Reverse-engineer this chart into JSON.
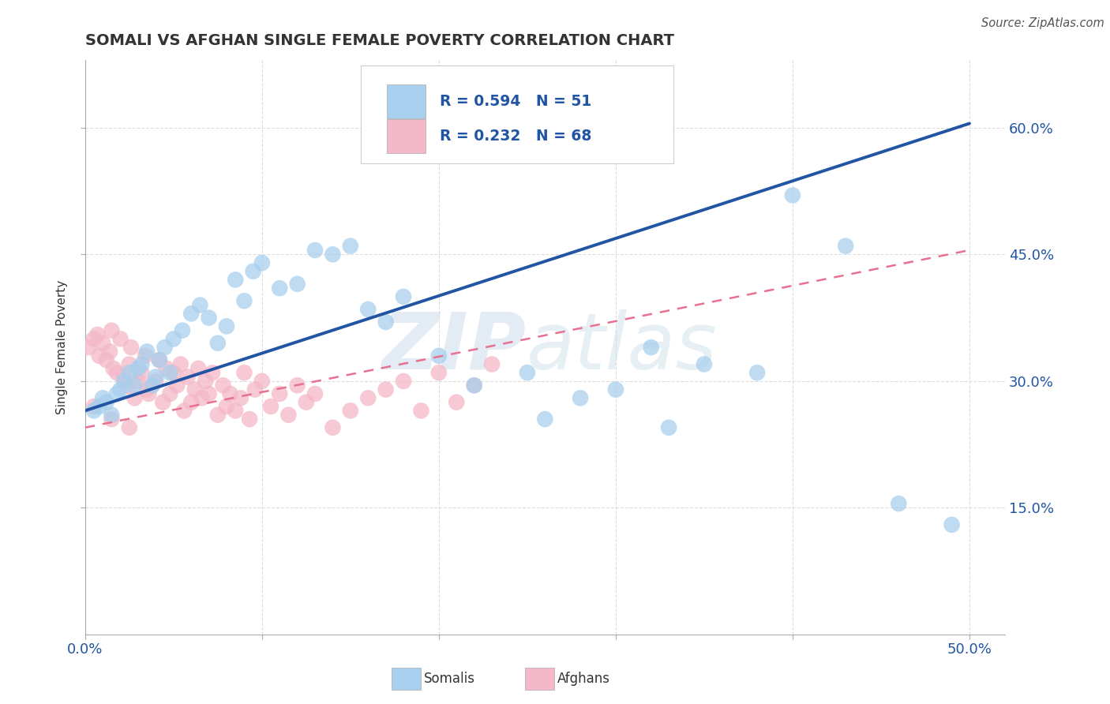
{
  "title": "SOMALI VS AFGHAN SINGLE FEMALE POVERTY CORRELATION CHART",
  "source": "Source: ZipAtlas.com",
  "ylabel": "Single Female Poverty",
  "xlim": [
    0.0,
    0.52
  ],
  "ylim": [
    0.0,
    0.68
  ],
  "ytick_positions": [
    0.15,
    0.3,
    0.45,
    0.6
  ],
  "xtick_positions": [
    0.0,
    0.1,
    0.2,
    0.3,
    0.4,
    0.5
  ],
  "right_ytick_labels": [
    "15.0%",
    "30.0%",
    "45.0%",
    "60.0%"
  ],
  "somali_color": "#A8CFED",
  "afghan_color": "#F4B8C8",
  "somali_line_color": "#2155A3",
  "afghan_line_color": "#E87090",
  "R_somali": 0.594,
  "N_somali": 51,
  "R_afghan": 0.232,
  "N_afghan": 68,
  "watermark_zip": "ZIP",
  "watermark_atlas": "atlas",
  "background_color": "#FFFFFF",
  "grid_color": "#DDDDDD",
  "tick_label_color": "#2155A3",
  "text_color": "#333333",
  "somali_line_y0": 0.265,
  "somali_line_y1": 0.605,
  "afghan_line_y0": 0.245,
  "afghan_line_y1": 0.455,
  "somali_x": [
    0.005,
    0.008,
    0.01,
    0.012,
    0.015,
    0.018,
    0.02,
    0.022,
    0.025,
    0.028,
    0.03,
    0.032,
    0.035,
    0.038,
    0.04,
    0.042,
    0.045,
    0.048,
    0.05,
    0.055,
    0.06,
    0.065,
    0.07,
    0.075,
    0.08,
    0.085,
    0.09,
    0.095,
    0.1,
    0.11,
    0.12,
    0.13,
    0.14,
    0.15,
    0.16,
    0.17,
    0.18,
    0.2,
    0.22,
    0.25,
    0.28,
    0.3,
    0.32,
    0.35,
    0.38,
    0.4,
    0.43,
    0.46,
    0.49,
    0.33,
    0.26
  ],
  "somali_y": [
    0.265,
    0.27,
    0.28,
    0.275,
    0.26,
    0.285,
    0.29,
    0.3,
    0.31,
    0.295,
    0.315,
    0.32,
    0.335,
    0.295,
    0.305,
    0.325,
    0.34,
    0.31,
    0.35,
    0.36,
    0.38,
    0.39,
    0.375,
    0.345,
    0.365,
    0.42,
    0.395,
    0.43,
    0.44,
    0.41,
    0.415,
    0.455,
    0.45,
    0.46,
    0.385,
    0.37,
    0.4,
    0.33,
    0.295,
    0.31,
    0.28,
    0.29,
    0.34,
    0.32,
    0.31,
    0.52,
    0.46,
    0.155,
    0.13,
    0.245,
    0.255
  ],
  "afghan_x": [
    0.002,
    0.005,
    0.007,
    0.008,
    0.01,
    0.012,
    0.014,
    0.015,
    0.016,
    0.018,
    0.02,
    0.022,
    0.024,
    0.025,
    0.026,
    0.028,
    0.03,
    0.032,
    0.034,
    0.035,
    0.036,
    0.038,
    0.04,
    0.042,
    0.044,
    0.046,
    0.048,
    0.05,
    0.052,
    0.054,
    0.056,
    0.058,
    0.06,
    0.062,
    0.064,
    0.066,
    0.068,
    0.07,
    0.072,
    0.075,
    0.078,
    0.08,
    0.082,
    0.085,
    0.088,
    0.09,
    0.093,
    0.096,
    0.1,
    0.105,
    0.11,
    0.115,
    0.12,
    0.125,
    0.13,
    0.14,
    0.15,
    0.16,
    0.17,
    0.18,
    0.19,
    0.2,
    0.21,
    0.22,
    0.23,
    0.005,
    0.015,
    0.025
  ],
  "afghan_y": [
    0.34,
    0.35,
    0.355,
    0.33,
    0.345,
    0.325,
    0.335,
    0.36,
    0.315,
    0.31,
    0.35,
    0.305,
    0.295,
    0.32,
    0.34,
    0.28,
    0.3,
    0.31,
    0.33,
    0.29,
    0.285,
    0.295,
    0.3,
    0.325,
    0.275,
    0.315,
    0.285,
    0.31,
    0.295,
    0.32,
    0.265,
    0.305,
    0.275,
    0.29,
    0.315,
    0.28,
    0.3,
    0.285,
    0.31,
    0.26,
    0.295,
    0.27,
    0.285,
    0.265,
    0.28,
    0.31,
    0.255,
    0.29,
    0.3,
    0.27,
    0.285,
    0.26,
    0.295,
    0.275,
    0.285,
    0.245,
    0.265,
    0.28,
    0.29,
    0.3,
    0.265,
    0.31,
    0.275,
    0.295,
    0.32,
    0.27,
    0.255,
    0.245
  ]
}
